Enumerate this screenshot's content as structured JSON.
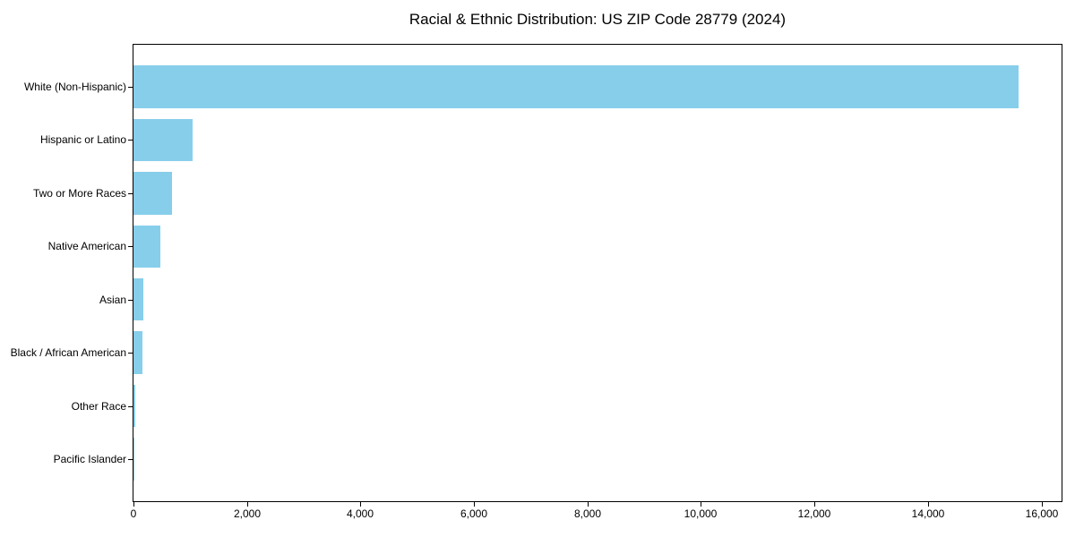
{
  "title": "Racial & Ethnic Distribution: US ZIP Code 28779 (2024)",
  "colors": {
    "bar": "#87CEEB",
    "spine": "#000000",
    "text": "#000000",
    "background": "#FFFFFF"
  },
  "chart_data": {
    "type": "bar",
    "orientation": "horizontal",
    "title": "Racial & Ethnic Distribution: US ZIP Code 28779 (2024)",
    "categories": [
      "White (Non-Hispanic)",
      "Hispanic or Latino",
      "Two or More Races",
      "Native American",
      "Asian",
      "Black / African American",
      "Other Race",
      "Pacific Islander"
    ],
    "values": [
      15590,
      1040,
      673,
      478,
      165,
      150,
      25,
      5
    ],
    "xlabel": "",
    "ylabel": "",
    "xlim": [
      0,
      16370
    ],
    "x_ticks": [
      0,
      2000,
      4000,
      6000,
      8000,
      10000,
      12000,
      14000,
      16000
    ],
    "x_tick_labels": [
      "0",
      "2,000",
      "4,000",
      "6,000",
      "8,000",
      "10,000",
      "12,000",
      "14,000",
      "16,000"
    ],
    "bar_color": "#87CEEB",
    "grid": false,
    "legend": null
  }
}
